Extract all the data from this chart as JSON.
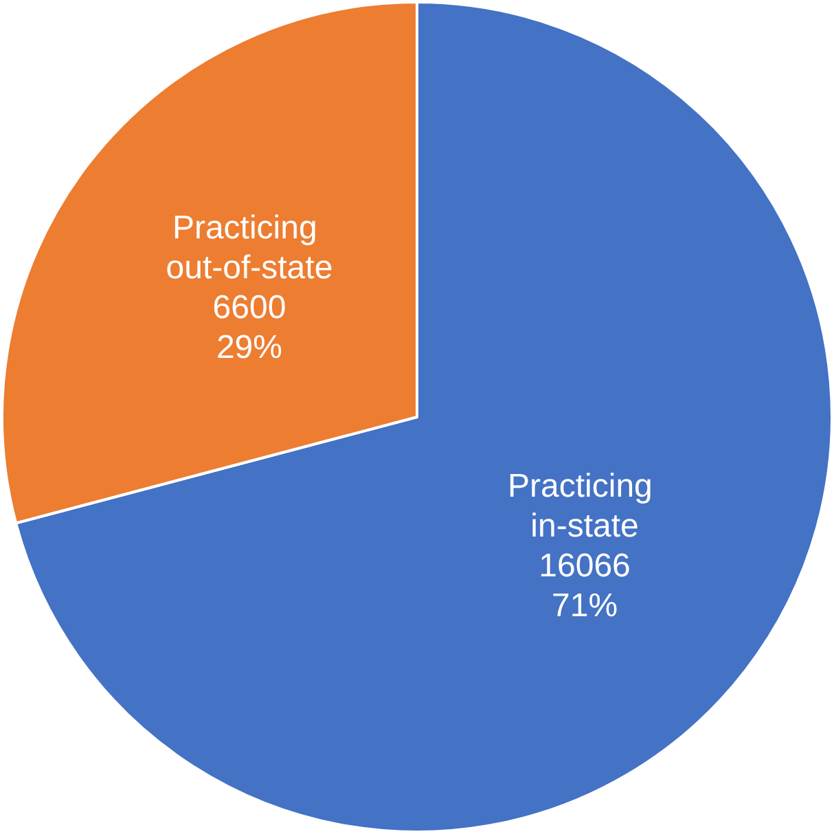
{
  "chart_data": {
    "type": "pie",
    "categories": [
      "Practicing in-state",
      "Practicing out-of-state"
    ],
    "values": [
      16066,
      6600
    ],
    "colors": [
      "#4472c4",
      "#ed7d31"
    ],
    "value_labels": [
      "16066\n71%",
      "6600\n29%"
    ],
    "legend": false
  }
}
